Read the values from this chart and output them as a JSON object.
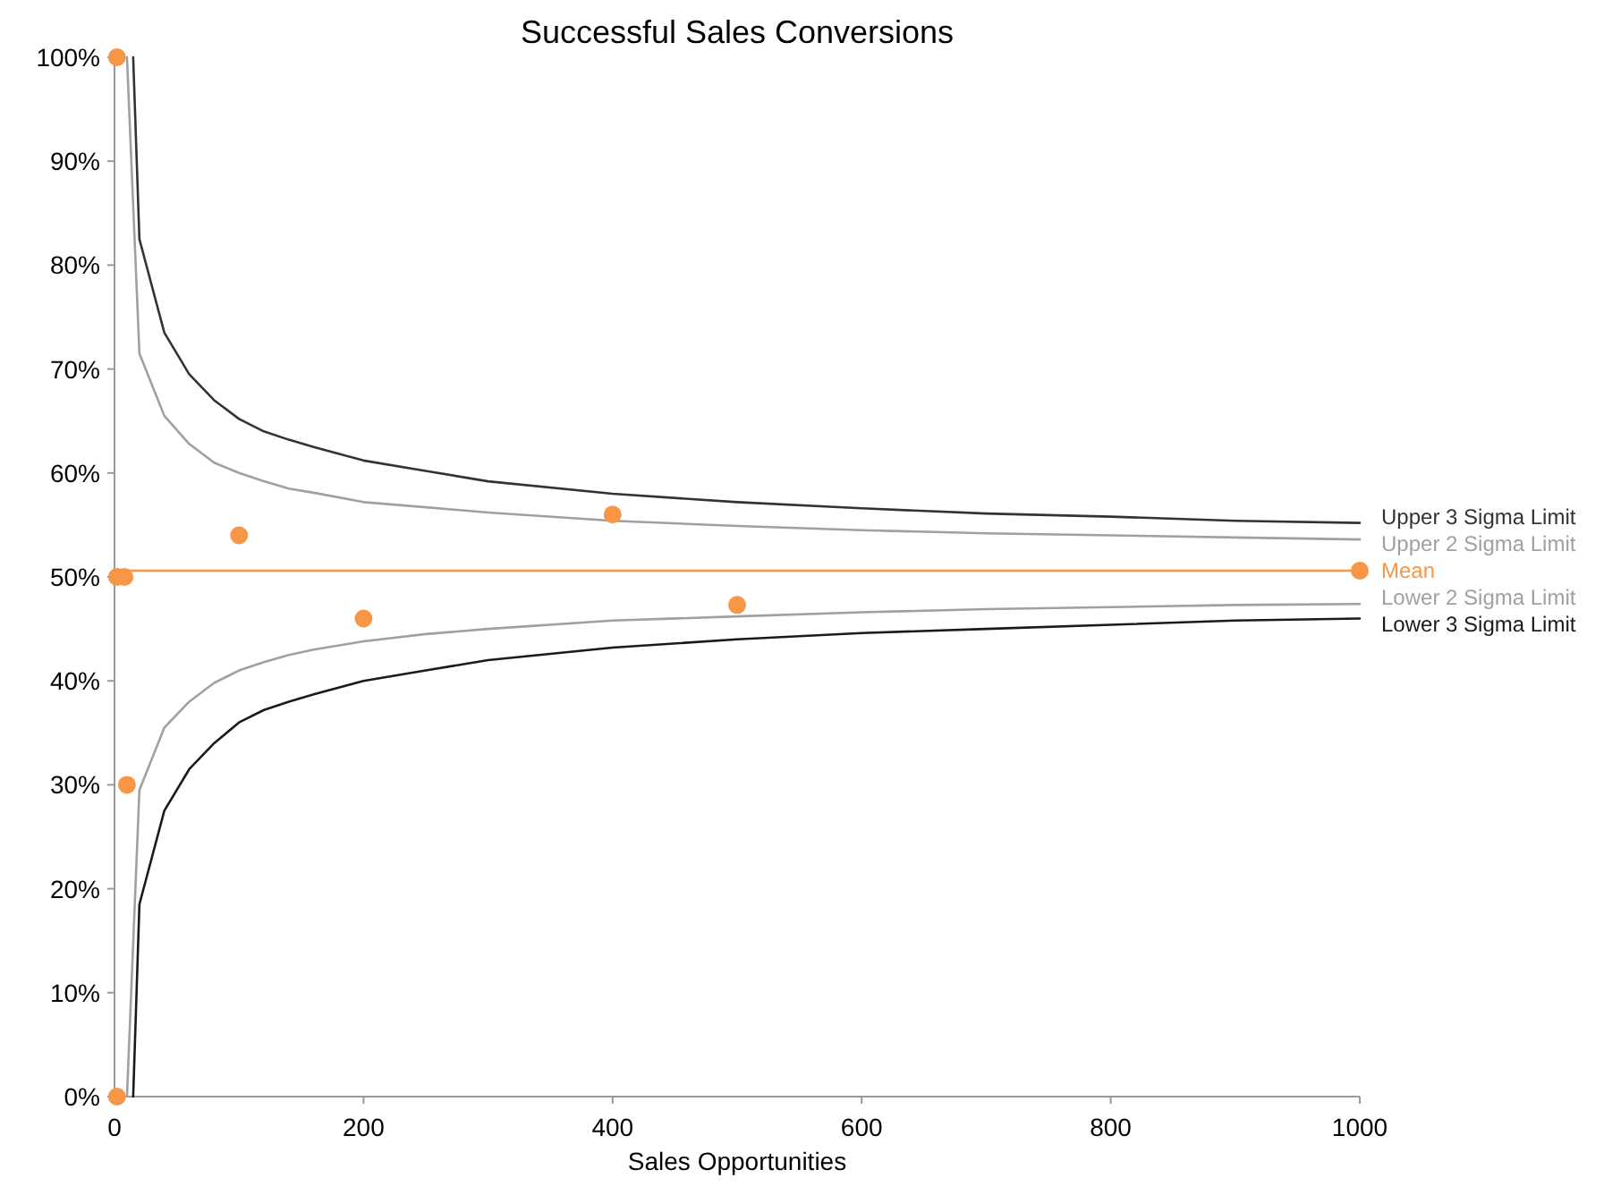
{
  "chart_data": {
    "type": "line",
    "title": "Successful Sales Conversions",
    "xlabel": "Sales Opportunities",
    "xlim": [
      0,
      1000
    ],
    "xticks": [
      0,
      200,
      400,
      600,
      800,
      1000
    ],
    "ylim": [
      0,
      100
    ],
    "yticks": [
      {
        "value": 0,
        "label": "0%"
      },
      {
        "value": 10,
        "label": "10%"
      },
      {
        "value": 20,
        "label": "20%"
      },
      {
        "value": 30,
        "label": "30%"
      },
      {
        "value": 40,
        "label": "40%"
      },
      {
        "value": 50,
        "label": "50%"
      },
      {
        "value": 60,
        "label": "60%"
      },
      {
        "value": 70,
        "label": "70%"
      },
      {
        "value": 80,
        "label": "80%"
      },
      {
        "value": 90,
        "label": "90%"
      },
      {
        "value": 100,
        "label": "100%"
      }
    ],
    "grid": false,
    "legend": false,
    "marker": "none",
    "line_style": "solid",
    "ref_lines": [
      {
        "axis": "y",
        "value": 50.6,
        "label": "Mean",
        "color": "#f79646"
      }
    ],
    "series": [
      {
        "name": "Upper 3 Sigma Limit",
        "color": "#333333",
        "x": [
          15,
          20,
          40,
          60,
          80,
          100,
          120,
          140,
          160,
          200,
          250,
          300,
          400,
          500,
          600,
          700,
          800,
          900,
          1000
        ],
        "values": [
          100,
          82.5,
          73.5,
          69.5,
          67,
          65.2,
          64,
          63.2,
          62.5,
          61.2,
          60.2,
          59.2,
          58,
          57.2,
          56.6,
          56.1,
          55.8,
          55.4,
          55.2
        ]
      },
      {
        "name": "Upper 2 Sigma Limit",
        "color": "#a0a0a0",
        "x": [
          10,
          20,
          40,
          60,
          80,
          100,
          120,
          140,
          160,
          200,
          250,
          300,
          400,
          500,
          600,
          700,
          800,
          900,
          1000
        ],
        "values": [
          100,
          71.5,
          65.5,
          62.8,
          61,
          60,
          59.2,
          58.5,
          58.1,
          57.2,
          56.7,
          56.2,
          55.4,
          54.9,
          54.5,
          54.2,
          54,
          53.8,
          53.6
        ]
      },
      {
        "name": "Lower 2 Sigma Limit",
        "color": "#a0a0a0",
        "x": [
          10,
          20,
          40,
          60,
          80,
          100,
          120,
          140,
          160,
          200,
          250,
          300,
          400,
          500,
          600,
          700,
          800,
          900,
          1000
        ],
        "values": [
          0,
          29.5,
          35.5,
          38,
          39.8,
          41,
          41.8,
          42.5,
          43,
          43.8,
          44.5,
          45,
          45.8,
          46.2,
          46.6,
          46.9,
          47.1,
          47.3,
          47.4
        ]
      },
      {
        "name": "Lower 3 Sigma Limit",
        "color": "#1a1a1a",
        "x": [
          15,
          20,
          40,
          60,
          80,
          100,
          120,
          140,
          160,
          200,
          250,
          300,
          400,
          500,
          600,
          700,
          800,
          900,
          1000
        ],
        "values": [
          0,
          18.5,
          27.5,
          31.5,
          34,
          36,
          37.2,
          38,
          38.7,
          40,
          41,
          42,
          43.2,
          44,
          44.6,
          45,
          45.4,
          45.8,
          46
        ]
      },
      {
        "type": "scatter",
        "marker": "circle",
        "color": "#f79646",
        "x": [
          2,
          2,
          2,
          8,
          10,
          100,
          200,
          400,
          500,
          1000
        ],
        "values": [
          100,
          50,
          0,
          50,
          30,
          54,
          46,
          56,
          47.3,
          50.6
        ]
      }
    ]
  }
}
